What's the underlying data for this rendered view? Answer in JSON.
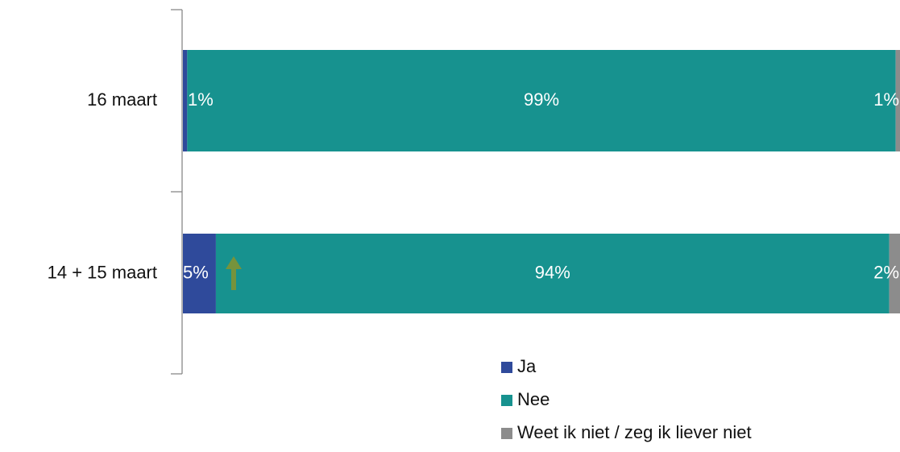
{
  "chart_data": {
    "type": "stacked-bar-horizontal",
    "categories": [
      "16 maart",
      "14 + 15 maart"
    ],
    "series": [
      {
        "name": "Ja",
        "color": "#2f4a9b",
        "values": [
          0.6,
          4.6
        ],
        "value_labels": [
          "1%",
          "5%"
        ]
      },
      {
        "name": "Nee",
        "color": "#17928f",
        "values": [
          98.8,
          93.9
        ],
        "value_labels": [
          "99%",
          "94%"
        ]
      },
      {
        "name": "Weet ik niet / zeg ik liever niet",
        "color": "#8c8c8c",
        "values": [
          0.6,
          1.5
        ],
        "value_labels": [
          "1%",
          "2%"
        ]
      }
    ],
    "xlim": [
      0,
      100
    ],
    "legend": "bottom"
  }
}
